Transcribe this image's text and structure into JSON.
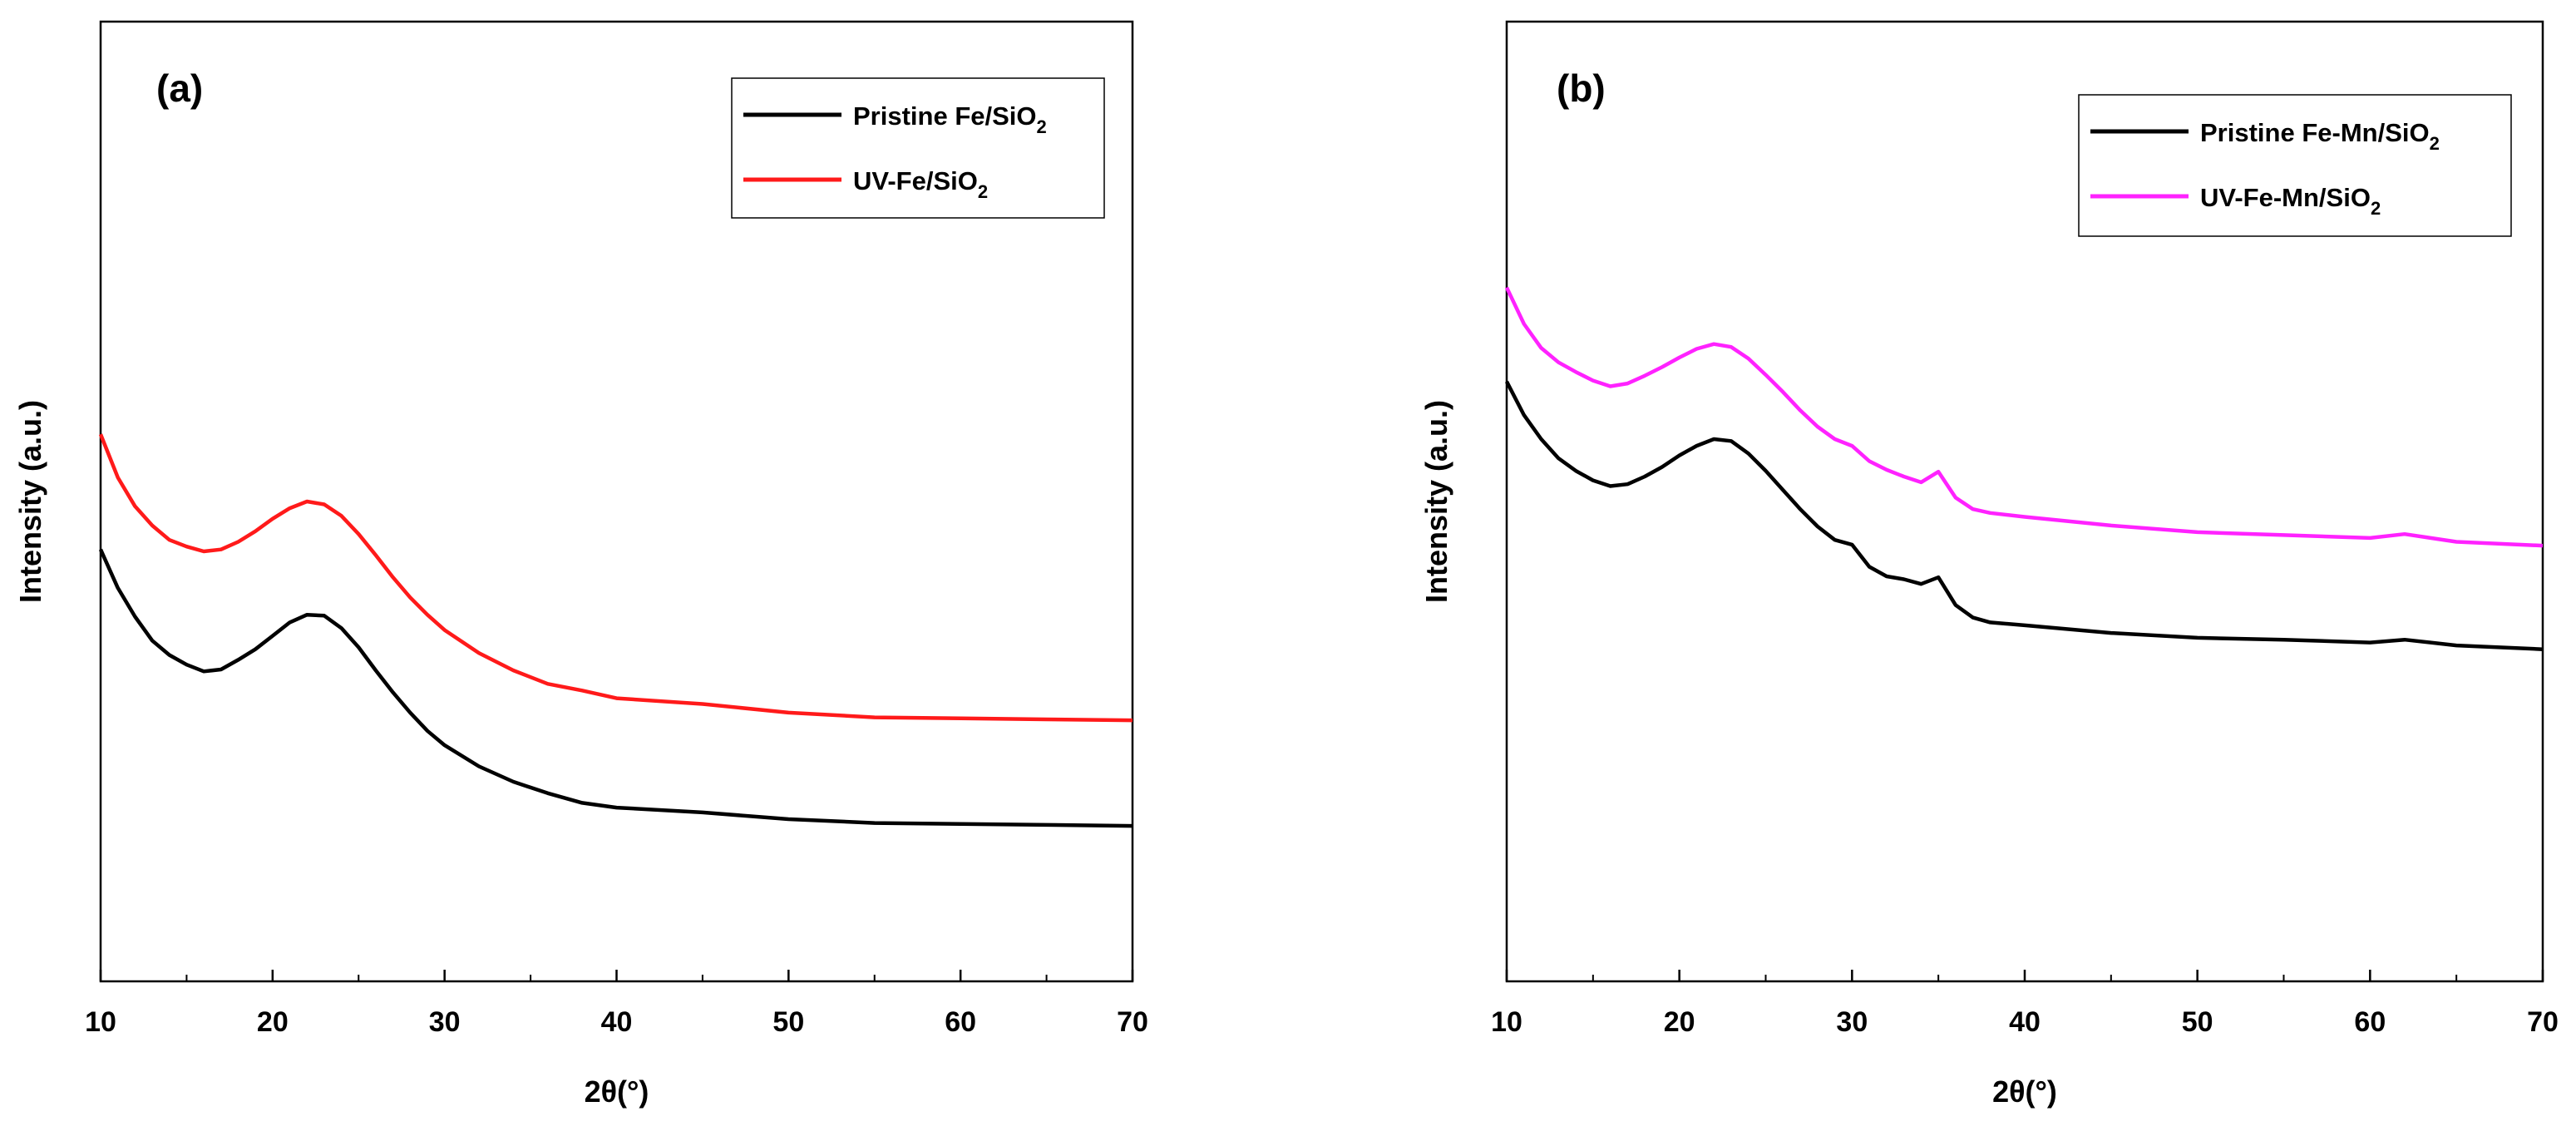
{
  "chart_data": [
    {
      "type": "line",
      "panel_label": "(a)",
      "xlabel": "2θ(°)",
      "ylabel": "Intensity (a.u.)",
      "xlim": [
        10,
        70
      ],
      "ylim": [
        0,
        100
      ],
      "x_ticks": [
        10,
        20,
        30,
        40,
        50,
        60,
        70
      ],
      "y_tick_labels": "none",
      "legend_position": "top-right",
      "series": [
        {
          "name": "Pristine Fe/SiO2",
          "legend_main": "Pristine Fe/SiO",
          "legend_sub": "2",
          "color": "#000000",
          "x": [
            10,
            11,
            12,
            13,
            14,
            15,
            16,
            17,
            18,
            19,
            20,
            21,
            22,
            23,
            24,
            25,
            26,
            27,
            28,
            29,
            30,
            32,
            34,
            36,
            38,
            40,
            45,
            50,
            55,
            60,
            65,
            70
          ],
          "y": [
            45,
            41,
            38,
            35.5,
            34,
            33,
            32.3,
            32.5,
            33.5,
            34.6,
            36,
            37.4,
            38.2,
            38.1,
            36.8,
            34.8,
            32.4,
            30.1,
            28,
            26.1,
            24.6,
            22.4,
            20.8,
            19.6,
            18.6,
            18.1,
            17.6,
            16.9,
            16.5,
            16.4,
            16.3,
            16.2
          ]
        },
        {
          "name": "UV-Fe/SiO2",
          "legend_main": "UV-Fe/SiO",
          "legend_sub": "2",
          "color": "#ff1a1a",
          "x": [
            10,
            11,
            12,
            13,
            14,
            15,
            16,
            17,
            18,
            19,
            20,
            21,
            22,
            23,
            24,
            25,
            26,
            27,
            28,
            29,
            30,
            32,
            34,
            36,
            38,
            40,
            45,
            50,
            55,
            60,
            65,
            70
          ],
          "y": [
            57,
            52.5,
            49.5,
            47.5,
            46,
            45.3,
            44.8,
            45,
            45.8,
            46.9,
            48.2,
            49.3,
            50,
            49.7,
            48.5,
            46.6,
            44.4,
            42.1,
            40,
            38.2,
            36.6,
            34.2,
            32.4,
            31,
            30.3,
            29.5,
            28.9,
            28,
            27.5,
            27.4,
            27.3,
            27.2
          ]
        }
      ]
    },
    {
      "type": "line",
      "panel_label": "(b)",
      "xlabel": "2θ(°)",
      "ylabel": "Intensity (a.u.)",
      "xlim": [
        10,
        70
      ],
      "ylim": [
        0,
        100
      ],
      "x_ticks": [
        10,
        20,
        30,
        40,
        50,
        60,
        70
      ],
      "y_tick_labels": "none",
      "legend_position": "top-right",
      "series": [
        {
          "name": "Pristine Fe-Mn/SiO2",
          "legend_main": "Pristine Fe-Mn/SiO",
          "legend_sub": "2",
          "color": "#000000",
          "x": [
            10,
            11,
            12,
            13,
            14,
            15,
            16,
            17,
            18,
            19,
            20,
            21,
            22,
            23,
            24,
            25,
            26,
            27,
            28,
            29,
            30,
            31,
            32,
            33,
            34,
            35,
            36,
            37,
            38,
            40,
            45,
            50,
            55,
            60,
            62,
            65,
            70
          ],
          "y": [
            62.5,
            59,
            56.5,
            54.5,
            53.2,
            52.2,
            51.6,
            51.8,
            52.6,
            53.6,
            54.8,
            55.8,
            56.5,
            56.3,
            55,
            53.2,
            51.2,
            49.2,
            47.4,
            46,
            45.5,
            43.2,
            42.2,
            41.9,
            41.4,
            42.1,
            39.2,
            37.9,
            37.4,
            37.1,
            36.3,
            35.8,
            35.6,
            35.3,
            35.6,
            35,
            34.6
          ]
        },
        {
          "name": "UV-Fe-Mn/SiO2",
          "legend_main": "UV-Fe-Mn/SiO",
          "legend_sub": "2",
          "color": "#ff22ff",
          "x": [
            10,
            11,
            12,
            13,
            14,
            15,
            16,
            17,
            18,
            19,
            20,
            21,
            22,
            23,
            24,
            25,
            26,
            27,
            28,
            29,
            30,
            31,
            32,
            33,
            34,
            35,
            36,
            37,
            38,
            40,
            45,
            50,
            55,
            60,
            62,
            65,
            70
          ],
          "y": [
            72.3,
            68.5,
            66,
            64.5,
            63.5,
            62.6,
            62,
            62.3,
            63.1,
            64,
            65,
            65.9,
            66.4,
            66.1,
            64.9,
            63.2,
            61.4,
            59.5,
            57.8,
            56.5,
            55.8,
            54.2,
            53.3,
            52.6,
            52,
            53.1,
            50.4,
            49.2,
            48.8,
            48.4,
            47.5,
            46.8,
            46.5,
            46.2,
            46.6,
            45.8,
            45.4
          ]
        }
      ]
    }
  ]
}
